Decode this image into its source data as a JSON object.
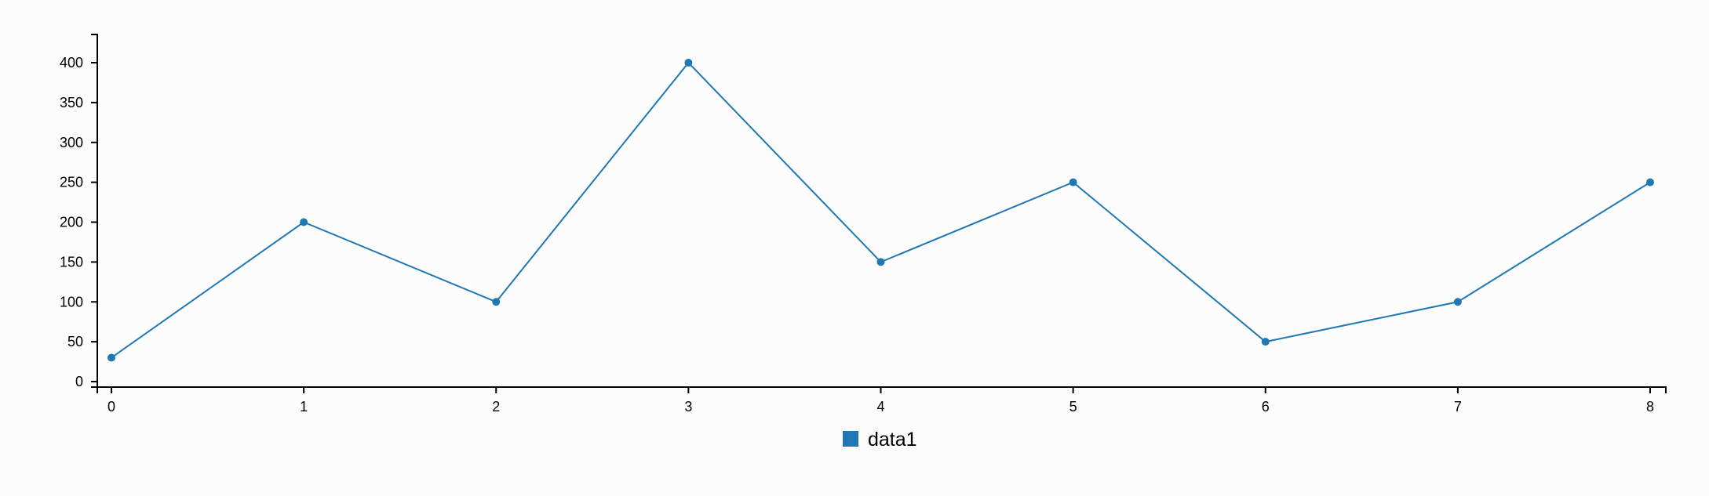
{
  "chart_data": {
    "type": "line",
    "title": "",
    "xlabel": "",
    "ylabel": "",
    "x": [
      0,
      1,
      2,
      3,
      4,
      5,
      6,
      7,
      8
    ],
    "xticks": [
      "0",
      "1",
      "2",
      "3",
      "4",
      "5",
      "6",
      "7",
      "8"
    ],
    "yticks": [
      "0",
      "50",
      "100",
      "150",
      "200",
      "250",
      "300",
      "350",
      "400"
    ],
    "ylim": [
      0,
      400
    ],
    "grid": false,
    "legend_position": "bottom-center",
    "series": [
      {
        "name": "data1",
        "color": "#1f77b4",
        "values": [
          30,
          200,
          100,
          400,
          150,
          250,
          50,
          100,
          250
        ]
      }
    ]
  }
}
